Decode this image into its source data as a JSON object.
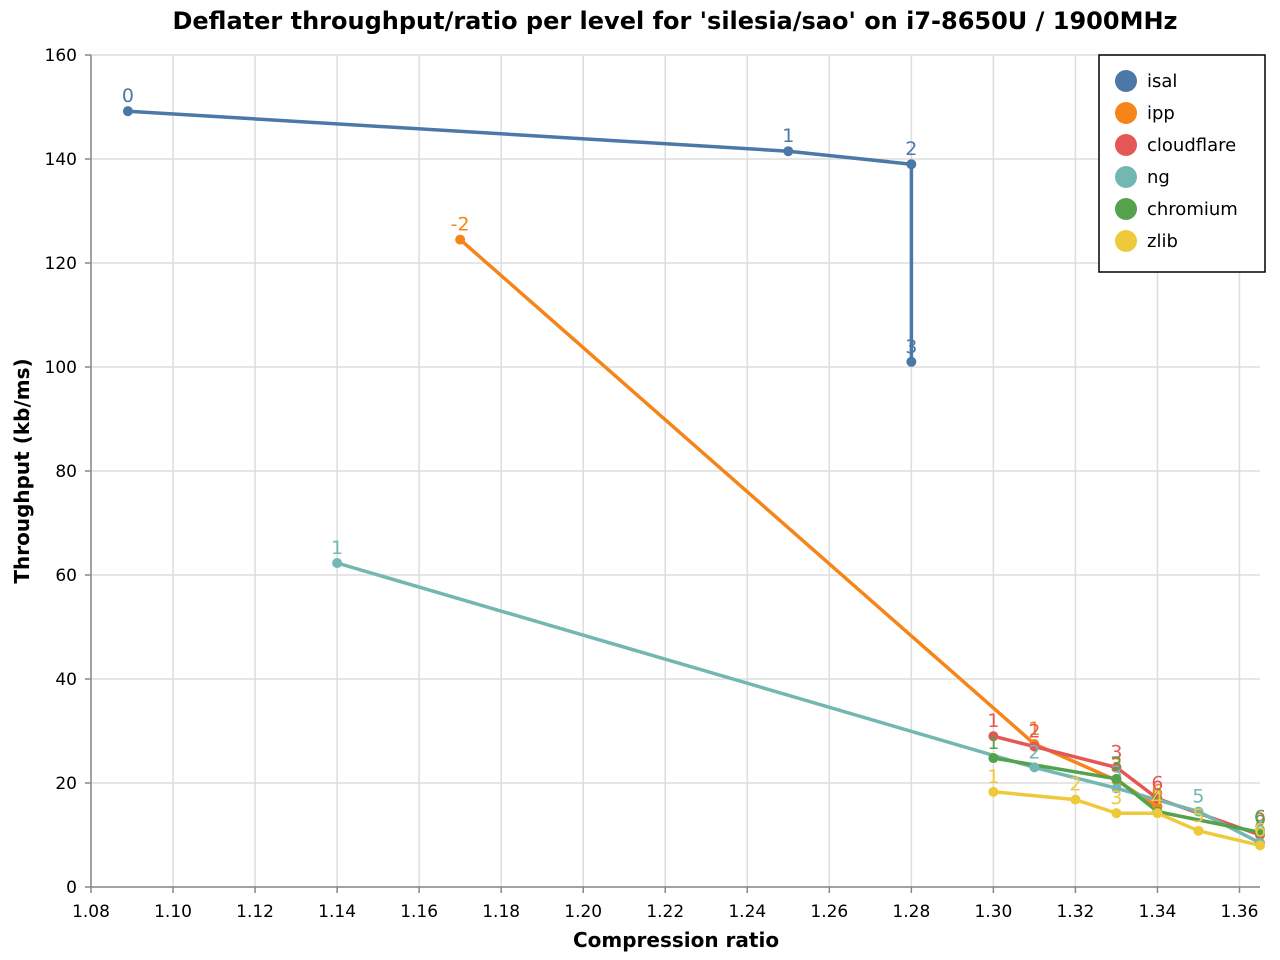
{
  "chart_data": {
    "type": "line",
    "title": "Deflater throughput/ratio per level for 'silesia/sao' on i7-8650U / 1900MHz",
    "xlabel": "Compression ratio",
    "ylabel": "Throughput (kb/ms)",
    "xlim": [
      1.08,
      1.365
    ],
    "ylim": [
      0,
      160
    ],
    "x_ticks": [
      "1.08",
      "1.10",
      "1.12",
      "1.14",
      "1.16",
      "1.18",
      "1.20",
      "1.22",
      "1.24",
      "1.26",
      "1.28",
      "1.30",
      "1.32",
      "1.34",
      "1.36"
    ],
    "x_tick_values": [
      1.08,
      1.1,
      1.12,
      1.14,
      1.16,
      1.18,
      1.2,
      1.22,
      1.24,
      1.26,
      1.28,
      1.3,
      1.32,
      1.34,
      1.36
    ],
    "y_ticks": [
      "0",
      "20",
      "40",
      "60",
      "80",
      "100",
      "120",
      "140",
      "160"
    ],
    "y_tick_values": [
      0,
      20,
      40,
      60,
      80,
      100,
      120,
      140,
      160
    ],
    "grid": true,
    "legend_position": "top-right",
    "series": [
      {
        "name": "isal",
        "color": "#4c78a8",
        "points": [
          {
            "x": 1.089,
            "y": 149.2,
            "label": "0"
          },
          {
            "x": 1.25,
            "y": 141.5,
            "label": "1"
          },
          {
            "x": 1.28,
            "y": 139.0,
            "label": "2"
          },
          {
            "x": 1.28,
            "y": 101.0,
            "label": "3"
          }
        ]
      },
      {
        "name": "ipp",
        "color": "#f58518",
        "points": [
          {
            "x": 1.17,
            "y": 124.5,
            "label": "-2"
          },
          {
            "x": 1.31,
            "y": 27.5,
            "label": "1"
          },
          {
            "x": 1.33,
            "y": 20.5,
            "label": "3"
          },
          {
            "x": 1.34,
            "y": 15.5,
            "label": "6"
          }
        ]
      },
      {
        "name": "cloudflare",
        "color": "#e45756",
        "points": [
          {
            "x": 1.3,
            "y": 29.0,
            "label": "1"
          },
          {
            "x": 1.31,
            "y": 27.0,
            "label": "2"
          },
          {
            "x": 1.33,
            "y": 23.0,
            "label": "3"
          },
          {
            "x": 1.34,
            "y": 17.0,
            "label": "6"
          },
          {
            "x": 1.365,
            "y": 10.0,
            "label": "9"
          }
        ]
      },
      {
        "name": "ng",
        "color": "#72b7b2",
        "points": [
          {
            "x": 1.14,
            "y": 62.3,
            "label": "1"
          },
          {
            "x": 1.31,
            "y": 23.0,
            "label": "2"
          },
          {
            "x": 1.33,
            "y": 19.0,
            "label": "3"
          },
          {
            "x": 1.35,
            "y": 14.5,
            "label": "5"
          },
          {
            "x": 1.365,
            "y": 8.5,
            "label": "6"
          }
        ]
      },
      {
        "name": "chromium",
        "color": "#54a24b",
        "points": [
          {
            "x": 1.3,
            "y": 24.8,
            "label": "1"
          },
          {
            "x": 1.33,
            "y": 20.8,
            "label": "3"
          },
          {
            "x": 1.34,
            "y": 14.5,
            "label": "4"
          },
          {
            "x": 1.365,
            "y": 10.5,
            "label": "6"
          }
        ]
      },
      {
        "name": "zlib",
        "color": "#eeca3b",
        "points": [
          {
            "x": 1.3,
            "y": 18.3,
            "label": "1"
          },
          {
            "x": 1.32,
            "y": 16.8,
            "label": "2"
          },
          {
            "x": 1.33,
            "y": 14.2,
            "label": "3"
          },
          {
            "x": 1.34,
            "y": 14.2,
            "label": "4"
          },
          {
            "x": 1.35,
            "y": 10.8,
            "label": "5"
          },
          {
            "x": 1.365,
            "y": 8.0,
            "label": "6"
          }
        ]
      }
    ]
  }
}
